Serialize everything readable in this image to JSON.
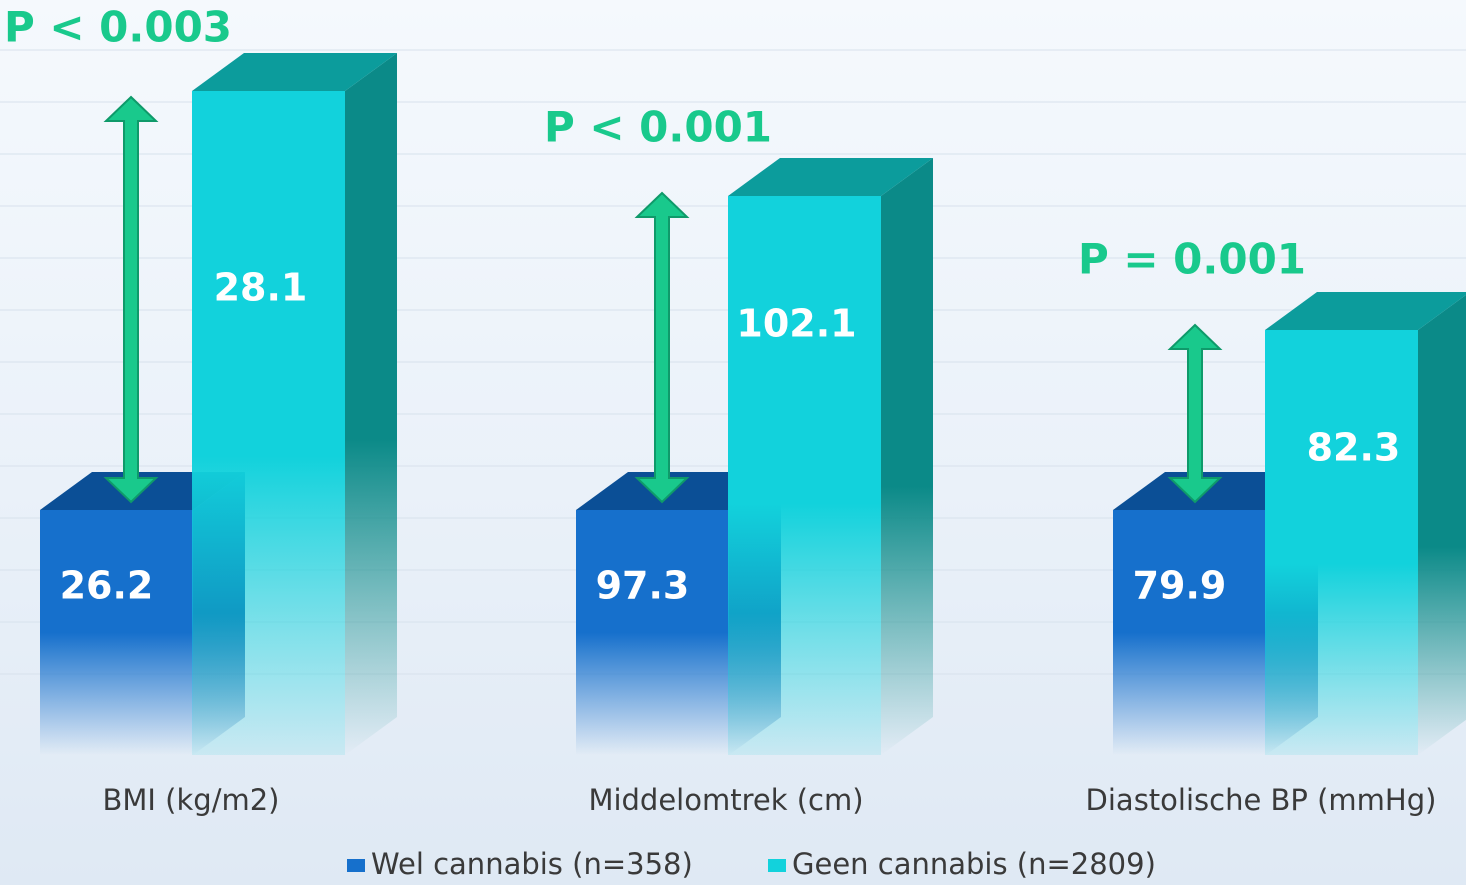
{
  "chart_data": {
    "type": "bar",
    "categories": [
      "BMI (kg/m2)",
      "Middelomtrek (cm)",
      "Diastolische BP (mmHg)"
    ],
    "series": [
      {
        "name": "Wel cannabis (n=358)",
        "values": [
          26.2,
          97.3,
          79.9
        ],
        "color": "#1670cc"
      },
      {
        "name": "Geen cannabis (n=2809)",
        "values": [
          28.1,
          102.1,
          82.3
        ],
        "color": "#12d2dc"
      }
    ],
    "annotations": [
      "P < 0.003",
      "P < 0.001",
      "P = 0.001"
    ],
    "annotation_color": "#19c98c",
    "grid": true,
    "legend": "bottom-center",
    "style": "3d-columns"
  }
}
